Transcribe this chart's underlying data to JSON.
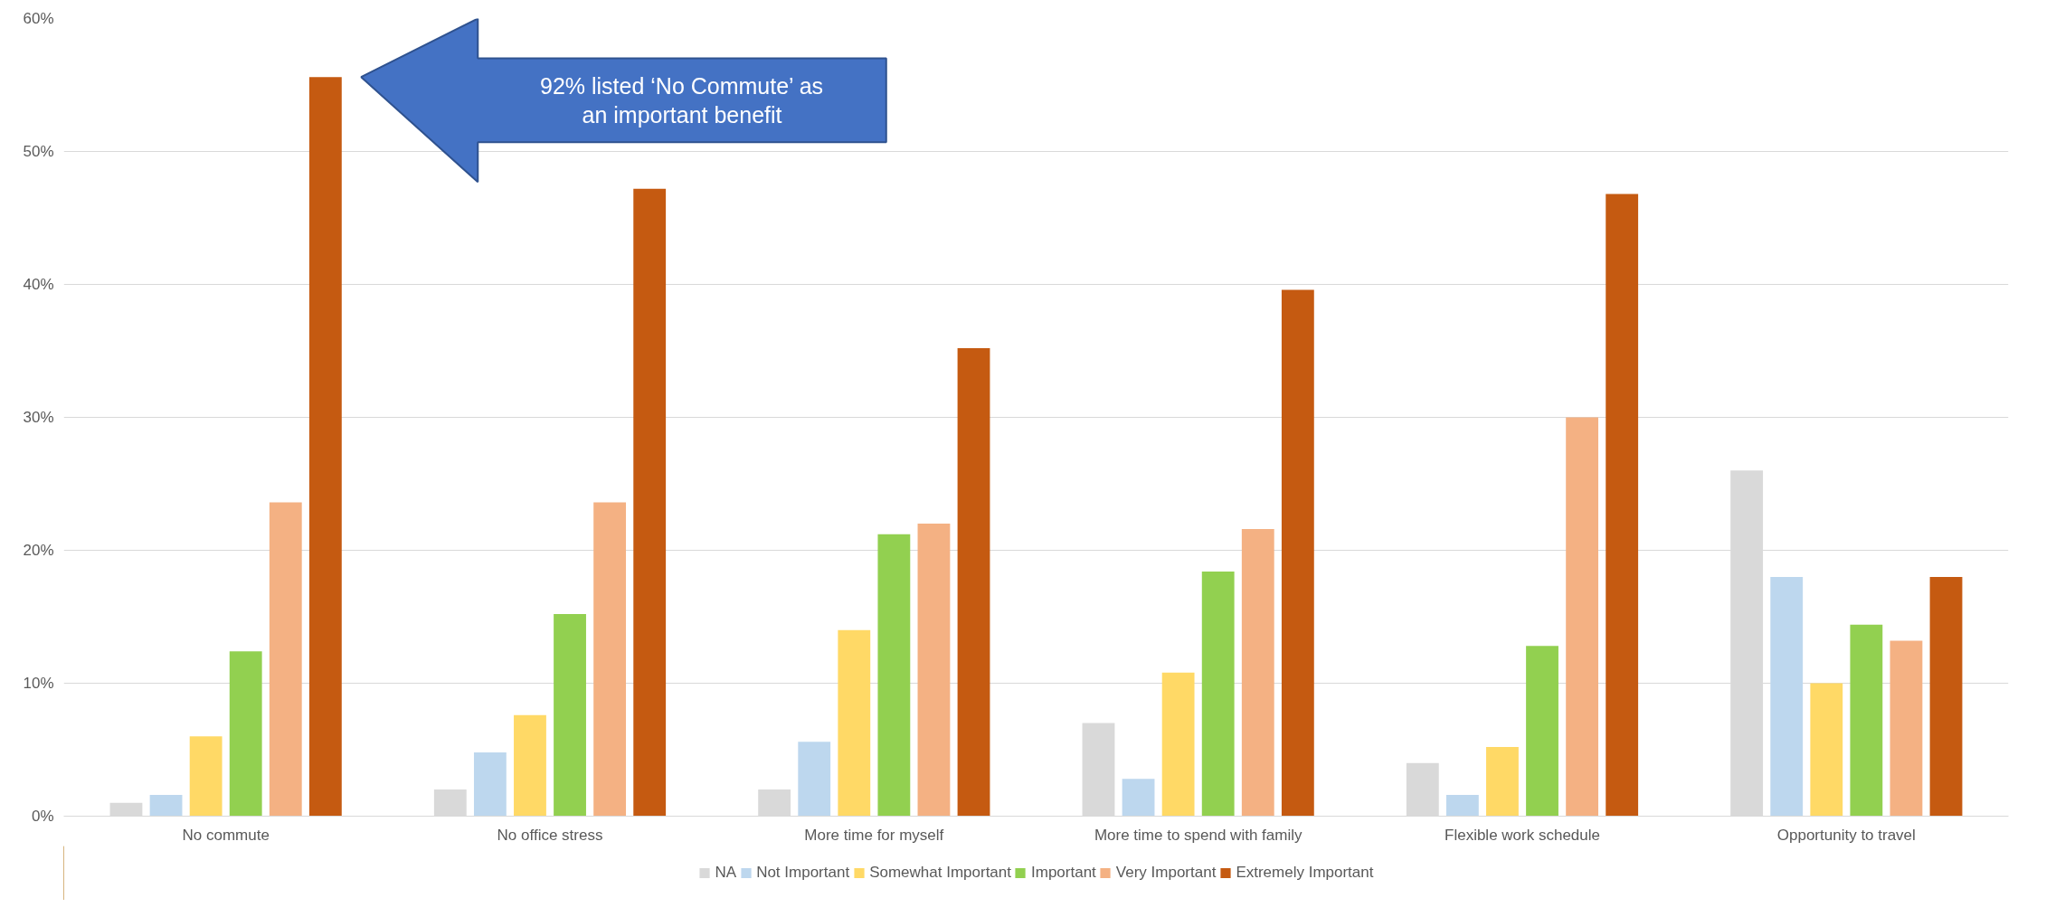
{
  "chart_data": {
    "type": "bar",
    "categories": [
      "No commute",
      "No office stress",
      "More time for myself",
      "More time to spend with family",
      "Flexible work schedule",
      "Opportunity to travel"
    ],
    "series": [
      {
        "name": "NA",
        "color": "#d9d9d9",
        "values": [
          1.0,
          2.0,
          2.0,
          7.0,
          4.0,
          26.0
        ]
      },
      {
        "name": "Not Important",
        "color": "#bdd7ee",
        "values": [
          1.6,
          4.8,
          5.6,
          2.8,
          1.6,
          18.0
        ]
      },
      {
        "name": "Somewhat Important",
        "color": "#ffd966",
        "values": [
          6.0,
          7.6,
          14.0,
          10.8,
          5.2,
          10.0
        ]
      },
      {
        "name": "Important",
        "color": "#92d050",
        "values": [
          12.4,
          15.2,
          21.2,
          18.4,
          12.8,
          14.4
        ]
      },
      {
        "name": "Very Important",
        "color": "#f4b183",
        "values": [
          23.6,
          23.6,
          22.0,
          21.6,
          30.0,
          13.2
        ]
      },
      {
        "name": "Extremely Important",
        "color": "#c55a11",
        "values": [
          55.6,
          47.2,
          35.2,
          39.6,
          46.8,
          18.0
        ]
      }
    ],
    "ylim": [
      0,
      60
    ],
    "yticks": [
      {
        "value": 0,
        "label": "0%"
      },
      {
        "value": 10,
        "label": "10%"
      },
      {
        "value": 20,
        "label": "20%"
      },
      {
        "value": 30,
        "label": "30%"
      },
      {
        "value": 40,
        "label": "40%"
      },
      {
        "value": 50,
        "label": "50%"
      },
      {
        "value": 60,
        "label": "60%"
      }
    ],
    "grid": "y",
    "legend": "bottom",
    "annotations": [
      "92% listed ‘No Commute’ as\nan important benefit"
    ]
  }
}
